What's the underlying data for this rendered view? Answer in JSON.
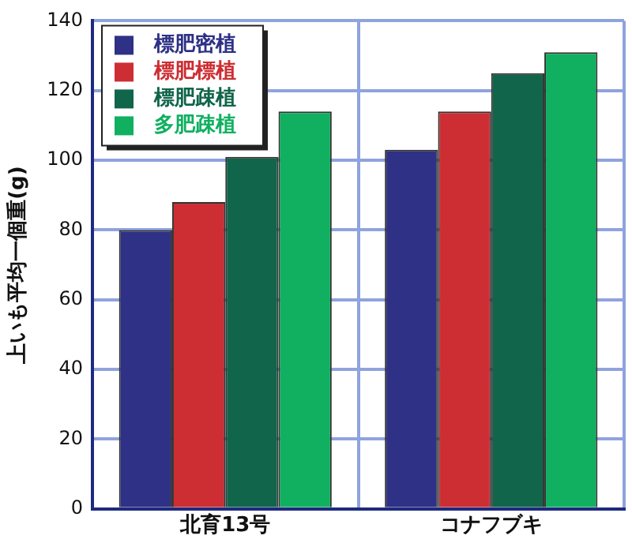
{
  "chart_data": {
    "type": "bar",
    "ylabel": "上いも平均一個重(g)",
    "categories": [
      "北育13号",
      "コナフブキ"
    ],
    "series": [
      {
        "name": "標肥密植",
        "color": "#2e3185",
        "values": [
          80,
          103
        ]
      },
      {
        "name": "標肥標植",
        "color": "#cc2e33",
        "values": [
          88,
          114
        ]
      },
      {
        "name": "標肥疎植",
        "color": "#10654a",
        "values": [
          101,
          125
        ]
      },
      {
        "name": "多肥疎植",
        "color": "#10b060",
        "values": [
          114,
          131
        ]
      }
    ],
    "ylim": [
      0,
      140
    ],
    "yticks": [
      0,
      20,
      40,
      60,
      80,
      100,
      120,
      140
    ],
    "grid": true,
    "legend": "top left"
  }
}
